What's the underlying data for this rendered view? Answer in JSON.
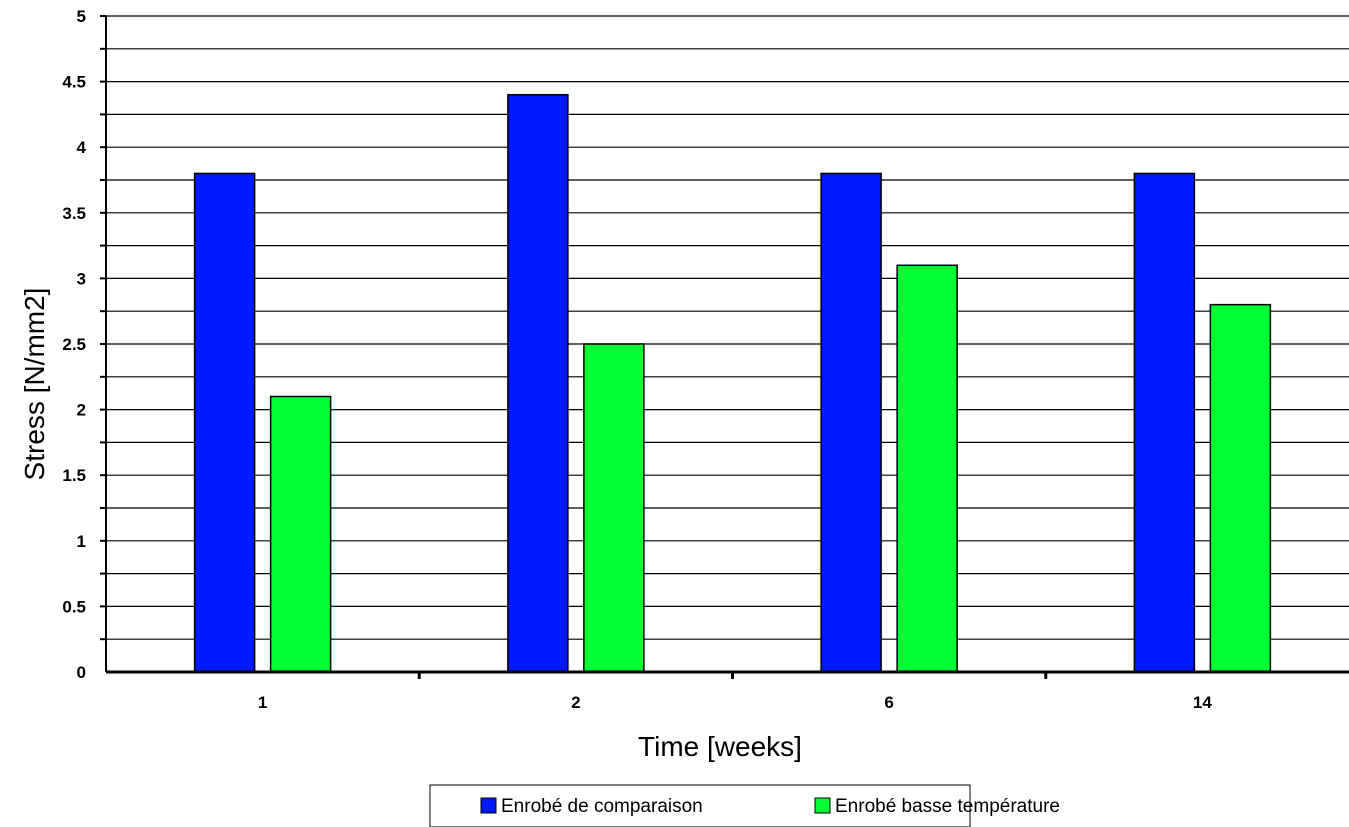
{
  "chart_data": {
    "type": "bar",
    "categories": [
      "1",
      "2",
      "6",
      "14"
    ],
    "series": [
      {
        "name": "Enrobé de comparaison",
        "color": "#0019ff",
        "values": [
          3.8,
          4.4,
          3.8,
          3.8
        ]
      },
      {
        "name": "Enrobé basse température",
        "color": "#00ff33",
        "values": [
          2.1,
          2.5,
          3.1,
          2.8
        ]
      }
    ],
    "title": "",
    "xlabel": "Time [weeks]",
    "ylabel": "Stress [N/mm2]",
    "ylim": [
      0,
      5
    ],
    "yticks": [
      "0",
      "0.5",
      "1",
      "1.5",
      "2",
      "2.5",
      "3",
      "3.5",
      "4",
      "4.5",
      "5"
    ],
    "grid": true,
    "legend_position": "bottom"
  }
}
